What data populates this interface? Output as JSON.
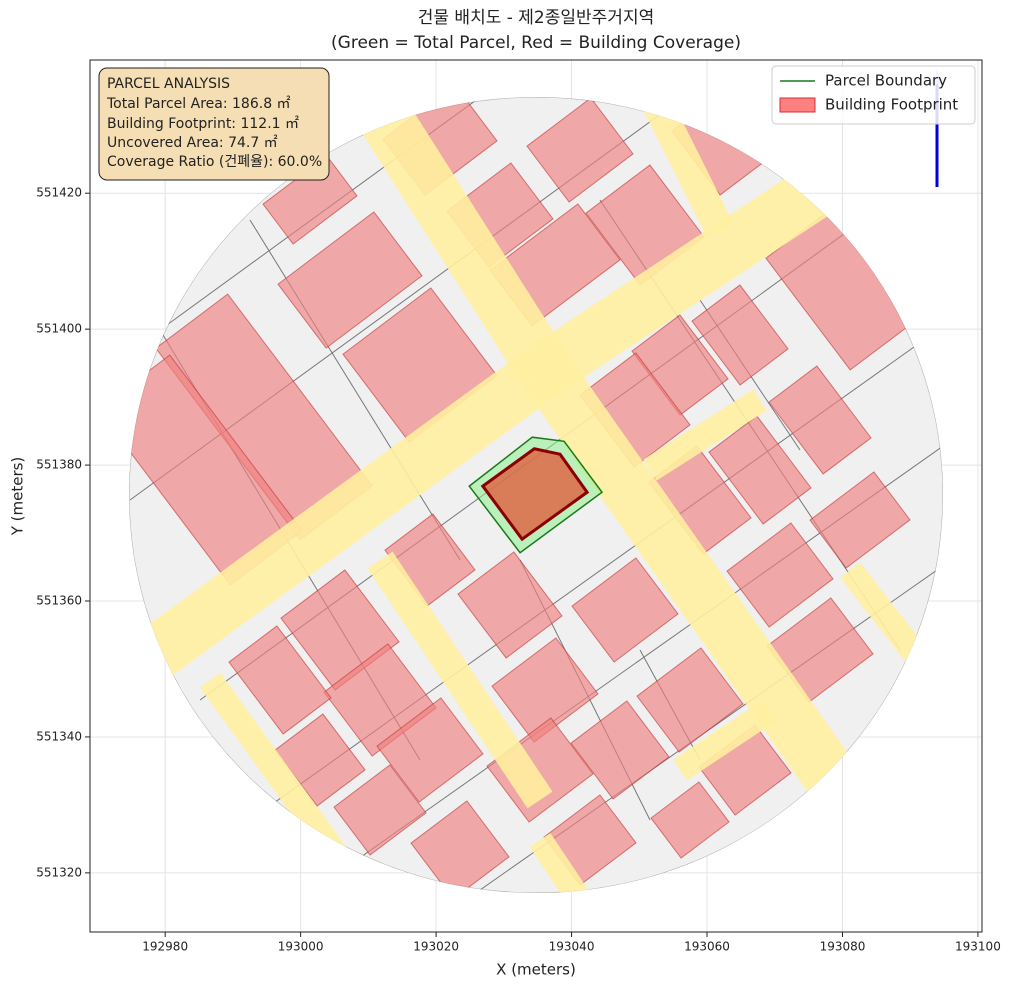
{
  "chart_data": {
    "type": "map",
    "title": "건물 배치도 - 제2종일반주거지역",
    "subtitle": "(Green = Total Parcel, Red = Building Coverage)",
    "xlabel": "X (meters)",
    "ylabel": "Y (meters)",
    "xlim": [
      192968.9,
      193100.6
    ],
    "ylim": [
      551311.3,
      551439.6
    ],
    "xticks": [
      192980,
      193000,
      193020,
      193040,
      193060,
      193080,
      193100
    ],
    "yticks": [
      551320,
      551340,
      551360,
      551380,
      551400,
      551420
    ],
    "grid": true,
    "legend": "upper right",
    "series": [
      {
        "name": "Parcel Boundary",
        "color": "#1a7a1a",
        "x": [
          193024.9,
          193034.2,
          193038.9,
          193044.5,
          193032.4
        ],
        "y": [
          551376.9,
          551384.1,
          551383.5,
          551376.0,
          551367.1
        ]
      },
      {
        "name": "Building Footprint",
        "color": "#8b0000",
        "x": [
          193026.9,
          193034.5,
          193038.3,
          193042.3,
          193032.7
        ],
        "y": [
          551376.9,
          551382.4,
          551381.6,
          551376.0,
          551369.1
        ]
      }
    ],
    "info_box": {
      "title": "PARCEL ANALYSIS",
      "lines": [
        "Total Parcel Area: 186.8 ㎡",
        "Building Footprint: 112.1 ㎡",
        "Uncovered Area: 74.7 ㎡",
        "Coverage Ratio (건폐율): 60.0%"
      ]
    }
  }
}
